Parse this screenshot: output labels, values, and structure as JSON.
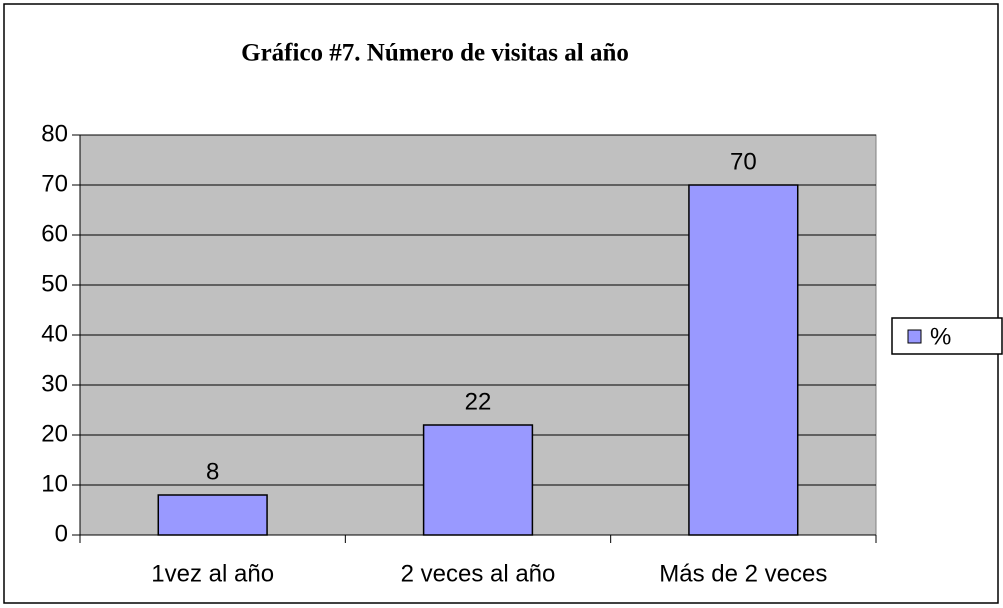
{
  "chart_data": {
    "type": "bar",
    "title": "Gráfico #7. Número de visitas al año",
    "categories": [
      "1vez al año",
      "2 veces al año",
      "Más de 2 veces"
    ],
    "series": [
      {
        "name": "%",
        "color": "#9999ff",
        "values": [
          8,
          22,
          70
        ]
      }
    ],
    "ylim": [
      0,
      80
    ],
    "yticks": [
      0,
      10,
      20,
      30,
      40,
      50,
      60,
      70,
      80
    ],
    "grid": true,
    "legend": "right"
  }
}
